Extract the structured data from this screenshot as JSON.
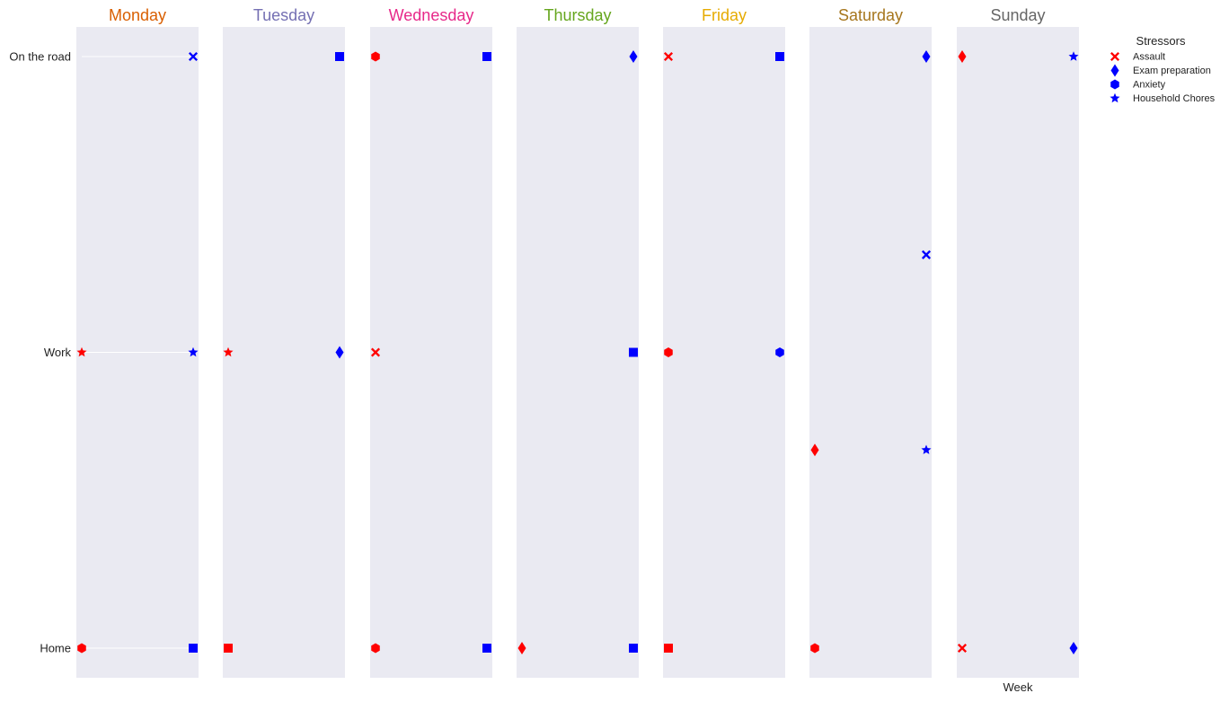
{
  "chart_data": {
    "type": "scatter",
    "xlabel": "Week",
    "y_categories": [
      "Home",
      "Work",
      "On the road"
    ],
    "ylim": [
      -0.1,
      2.1
    ],
    "xlim": [
      -0.05,
      1.05
    ],
    "grid": false,
    "legend": {
      "title": "Stressors",
      "placement": "top-right",
      "entries": [
        {
          "label": "Assault",
          "marker": "x",
          "color": "#ff0000"
        },
        {
          "label": "Exam preparation",
          "marker": "diamond",
          "color": "#0000ff"
        },
        {
          "label": "Anxiety",
          "marker": "hexagon",
          "color": "#0000ff"
        },
        {
          "label": "Household Chores",
          "marker": "star",
          "color": "#0000ff"
        }
      ]
    },
    "panels": [
      {
        "day": "Monday",
        "color": "#d95f02",
        "lines": [
          {
            "y": 2,
            "x": [
              0,
              1
            ]
          },
          {
            "y": 1,
            "x": [
              0,
              1
            ]
          },
          {
            "y": 0,
            "x": [
              0,
              1
            ]
          }
        ],
        "points": [
          {
            "x": 1,
            "y": 2,
            "marker": "x",
            "color": "#0000ff"
          },
          {
            "x": 0,
            "y": 1,
            "marker": "star",
            "color": "#ff0000"
          },
          {
            "x": 1,
            "y": 1,
            "marker": "star",
            "color": "#0000ff"
          },
          {
            "x": 0,
            "y": 0,
            "marker": "hexagon",
            "color": "#ff0000"
          },
          {
            "x": 1,
            "y": 0,
            "marker": "square",
            "color": "#0000ff"
          }
        ]
      },
      {
        "day": "Tuesday",
        "color": "#7570b3",
        "points": [
          {
            "x": 1,
            "y": 2,
            "marker": "square",
            "color": "#0000ff"
          },
          {
            "x": 0,
            "y": 1,
            "marker": "star",
            "color": "#ff0000"
          },
          {
            "x": 1,
            "y": 1,
            "marker": "diamond",
            "color": "#0000ff"
          },
          {
            "x": 0,
            "y": 0,
            "marker": "square",
            "color": "#ff0000"
          }
        ]
      },
      {
        "day": "Wednesday",
        "color": "#e7298a",
        "points": [
          {
            "x": 0,
            "y": 2,
            "marker": "hexagon",
            "color": "#ff0000"
          },
          {
            "x": 1,
            "y": 2,
            "marker": "square",
            "color": "#0000ff"
          },
          {
            "x": 0,
            "y": 1,
            "marker": "x",
            "color": "#ff0000"
          },
          {
            "x": 0,
            "y": 0,
            "marker": "hexagon",
            "color": "#ff0000"
          },
          {
            "x": 1,
            "y": 0,
            "marker": "square",
            "color": "#0000ff"
          }
        ]
      },
      {
        "day": "Thursday",
        "color": "#66a61e",
        "points": [
          {
            "x": 1,
            "y": 2,
            "marker": "diamond",
            "color": "#0000ff"
          },
          {
            "x": 1,
            "y": 1,
            "marker": "square",
            "color": "#0000ff"
          },
          {
            "x": 0,
            "y": 0,
            "marker": "diamond",
            "color": "#ff0000"
          },
          {
            "x": 1,
            "y": 0,
            "marker": "square",
            "color": "#0000ff"
          }
        ]
      },
      {
        "day": "Friday",
        "color": "#e6ab02",
        "points": [
          {
            "x": 0,
            "y": 2,
            "marker": "x",
            "color": "#ff0000"
          },
          {
            "x": 1,
            "y": 2,
            "marker": "square",
            "color": "#0000ff"
          },
          {
            "x": 0,
            "y": 1,
            "marker": "hexagon",
            "color": "#ff0000"
          },
          {
            "x": 1,
            "y": 1,
            "marker": "hexagon",
            "color": "#0000ff"
          },
          {
            "x": 0,
            "y": 0,
            "marker": "square",
            "color": "#ff0000"
          }
        ]
      },
      {
        "day": "Saturday",
        "color": "#a6761d",
        "points": [
          {
            "x": 1,
            "y": 2,
            "marker": "diamond",
            "color": "#0000ff"
          },
          {
            "x": 1,
            "y": 1.33,
            "marker": "x",
            "color": "#0000ff"
          },
          {
            "x": 0,
            "y": 0.67,
            "marker": "diamond",
            "color": "#ff0000"
          },
          {
            "x": 1,
            "y": 0.67,
            "marker": "star",
            "color": "#0000ff"
          },
          {
            "x": 0,
            "y": 0,
            "marker": "hexagon",
            "color": "#ff0000"
          }
        ]
      },
      {
        "day": "Sunday",
        "color": "#666666",
        "points": [
          {
            "x": 0,
            "y": 2,
            "marker": "diamond",
            "color": "#ff0000"
          },
          {
            "x": 1,
            "y": 2,
            "marker": "star",
            "color": "#0000ff"
          },
          {
            "x": 0,
            "y": 0,
            "marker": "x",
            "color": "#ff0000"
          },
          {
            "x": 1,
            "y": 0,
            "marker": "diamond",
            "color": "#0000ff"
          }
        ]
      }
    ]
  }
}
